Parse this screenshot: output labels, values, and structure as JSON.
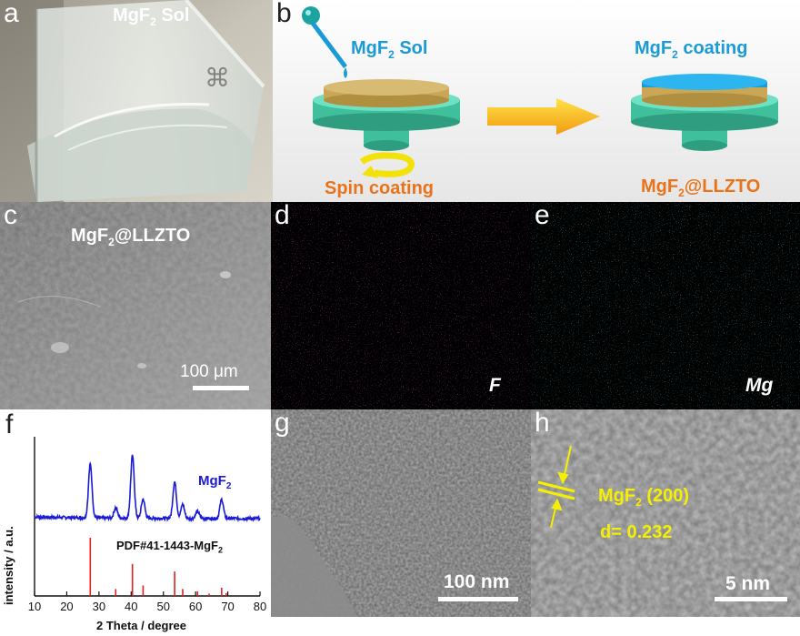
{
  "panels": {
    "a": {
      "label": "a",
      "title_main": "MgF",
      "title_sub": "2",
      "title_rest": " Sol"
    },
    "b": {
      "label": "b",
      "sol_main": "MgF",
      "sol_sub": "2",
      "sol_rest": " Sol",
      "coating_main": "MgF",
      "coating_sub": "2",
      "coating_rest": " coating",
      "spin": "Spin coating",
      "product_main": "MgF",
      "product_sub": "2",
      "product_rest": "@LLZTO"
    },
    "c": {
      "label": "c",
      "title_main": "MgF",
      "title_sub": "2",
      "title_rest": "@LLZTO",
      "scale": "100 μm"
    },
    "d": {
      "label": "d",
      "element": "F"
    },
    "e": {
      "label": "e",
      "element": "Mg"
    },
    "f": {
      "label": "f"
    },
    "g": {
      "label": "g",
      "scale": "100 nm"
    },
    "h": {
      "label": "h",
      "plane_main": "MgF",
      "plane_sub": "2",
      "plane_rest": " (200)",
      "d_spacing": "d= 0.232",
      "scale": "5 nm"
    }
  },
  "colors": {
    "mgf2_blue": "#1a9ad6",
    "orange": "#e8731a",
    "magenta": "#c21fb8",
    "cyan": "#1fb3b3",
    "xrd_blue": "#1a1ad6",
    "ref_red": "#e02020",
    "yellow": "#f5f000"
  },
  "chart_data": {
    "type": "line",
    "xlabel": "2 Theta / degree",
    "ylabel": "intensity / a.u.",
    "xlim": [
      10,
      80
    ],
    "xticks": [
      10,
      20,
      30,
      40,
      50,
      60,
      70,
      80
    ],
    "series": [
      {
        "name": "MgF2",
        "label_main": "MgF",
        "label_sub": "2",
        "peaks": [
          {
            "x": 27.3,
            "h": 0.62
          },
          {
            "x": 35.2,
            "h": 0.12
          },
          {
            "x": 40.4,
            "h": 0.72
          },
          {
            "x": 43.7,
            "h": 0.22
          },
          {
            "x": 53.5,
            "h": 0.42
          },
          {
            "x": 56.0,
            "h": 0.16
          },
          {
            "x": 60.6,
            "h": 0.08
          },
          {
            "x": 68.1,
            "h": 0.22
          }
        ]
      }
    ],
    "reference": {
      "name": "PDF#41-1443-MgF2",
      "label_text": "PDF#41-1443-MgF",
      "label_sub": "2",
      "sticks": [
        {
          "x": 27.3,
          "h": 1.0
        },
        {
          "x": 35.2,
          "h": 0.12
        },
        {
          "x": 40.4,
          "h": 0.55
        },
        {
          "x": 43.7,
          "h": 0.18
        },
        {
          "x": 53.5,
          "h": 0.42
        },
        {
          "x": 56.0,
          "h": 0.12
        },
        {
          "x": 60.6,
          "h": 0.08
        },
        {
          "x": 64.2,
          "h": 0.04
        },
        {
          "x": 68.1,
          "h": 0.14
        },
        {
          "x": 69.5,
          "h": 0.05
        }
      ]
    }
  }
}
